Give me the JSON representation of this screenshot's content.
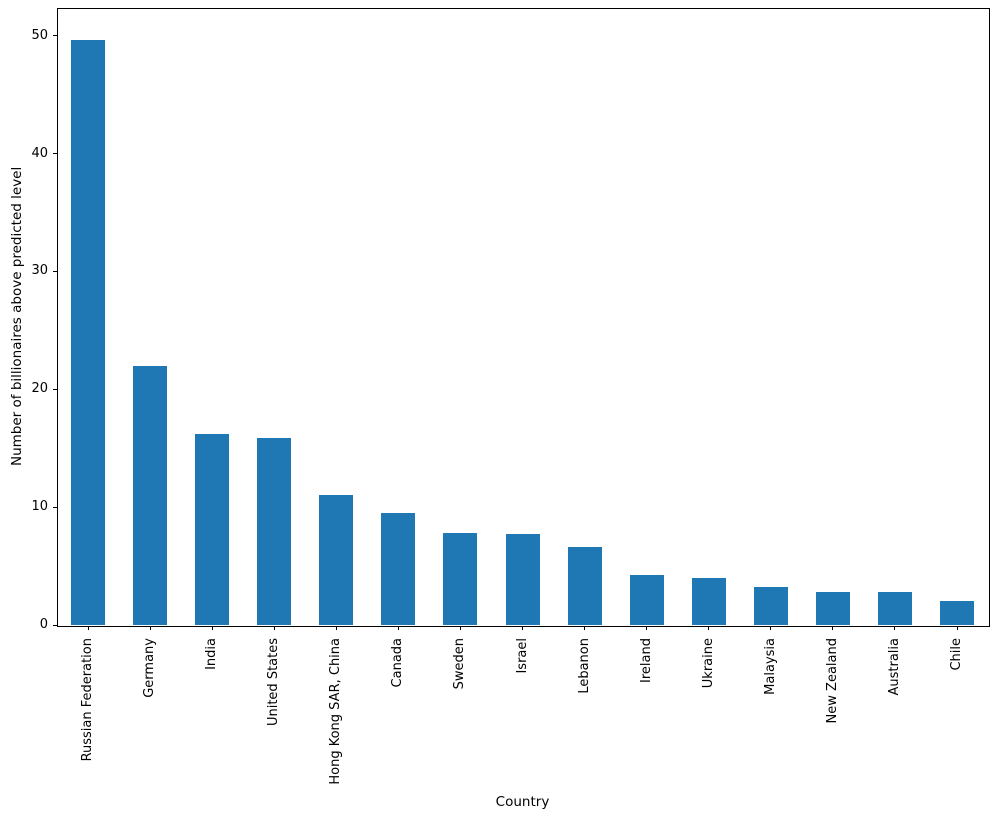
{
  "chart_data": {
    "type": "bar",
    "title": "",
    "xlabel": "Country",
    "ylabel": "Number of billionaires above predicted level",
    "categories": [
      "Russian Federation",
      "Germany",
      "India",
      "United States",
      "Hong Kong SAR, China",
      "Canada",
      "Sweden",
      "Israel",
      "Lebanon",
      "Ireland",
      "Ukraine",
      "Malaysia",
      "New Zealand",
      "Australia",
      "Chile"
    ],
    "values": [
      49.6,
      22.0,
      16.2,
      15.9,
      11.0,
      9.5,
      7.8,
      7.7,
      6.6,
      4.2,
      4.0,
      3.2,
      2.8,
      2.8,
      2.0
    ],
    "ylim": [
      0,
      52.35
    ],
    "yticks": [
      0,
      10,
      20,
      30,
      40,
      50
    ],
    "bar_color": "#1f77b4",
    "axis_color": "#000000",
    "background_color": "#ffffff",
    "grid": false,
    "legend": null
  }
}
